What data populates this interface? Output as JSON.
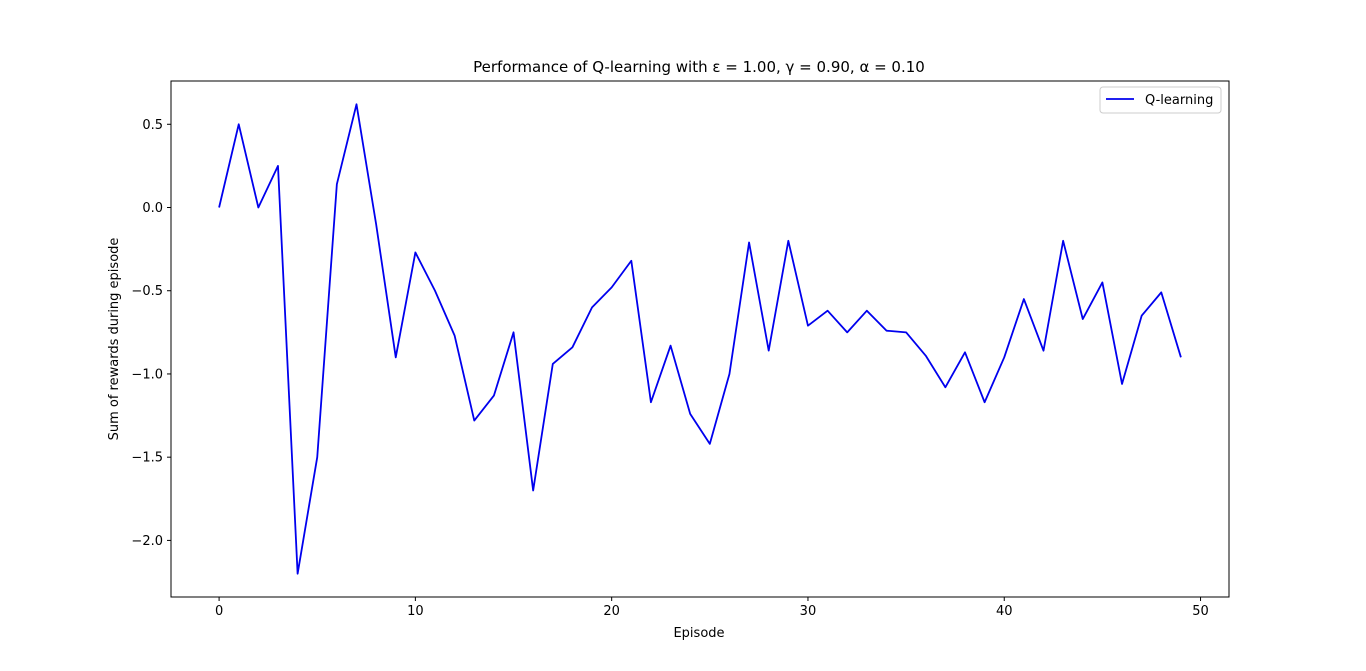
{
  "chart_data": {
    "type": "line",
    "title": "Performance of Q-learning with ε =  1.00, γ =  0.90, α =  0.10",
    "xlabel": "Episode",
    "ylabel": "Sum of rewards during episode",
    "xlim": [
      -2.45,
      51.45
    ],
    "ylim": [
      -2.34,
      0.76
    ],
    "xticks": [
      0,
      10,
      20,
      30,
      40,
      50
    ],
    "xtick_labels": [
      "0",
      "10",
      "20",
      "30",
      "40",
      "50"
    ],
    "yticks": [
      -2.0,
      -1.5,
      -1.0,
      -0.5,
      0.0,
      0.5
    ],
    "ytick_labels": [
      "−2.0",
      "−1.5",
      "−1.0",
      "−0.5",
      "0.0",
      "0.5"
    ],
    "grid": false,
    "legend_position": "upper-right",
    "series": [
      {
        "name": "Q-learning",
        "color": "#0000ee",
        "x": [
          0,
          1,
          2,
          3,
          4,
          5,
          6,
          7,
          8,
          9,
          10,
          11,
          12,
          13,
          14,
          15,
          16,
          17,
          18,
          19,
          20,
          21,
          22,
          23,
          24,
          25,
          26,
          27,
          28,
          29,
          30,
          31,
          32,
          33,
          34,
          35,
          36,
          37,
          38,
          39,
          40,
          41,
          42,
          43,
          44,
          45,
          46,
          47,
          48,
          49
        ],
        "values": [
          0.0,
          0.5,
          0.0,
          0.25,
          -2.2,
          -1.5,
          0.14,
          0.62,
          -0.1,
          -0.9,
          -0.27,
          -0.5,
          -0.77,
          -1.28,
          -1.13,
          -0.75,
          -1.7,
          -0.94,
          -0.84,
          -0.6,
          -0.48,
          -0.32,
          -1.17,
          -0.83,
          -1.24,
          -1.42,
          -1.0,
          -0.21,
          -0.86,
          -0.2,
          -0.71,
          -0.62,
          -0.75,
          -0.62,
          -0.74,
          -0.75,
          -0.89,
          -1.08,
          -0.87,
          -1.17,
          -0.9,
          -0.55,
          -0.86,
          -0.2,
          -0.67,
          -0.45,
          -1.06,
          -0.65,
          -0.51,
          -0.9
        ]
      }
    ]
  }
}
